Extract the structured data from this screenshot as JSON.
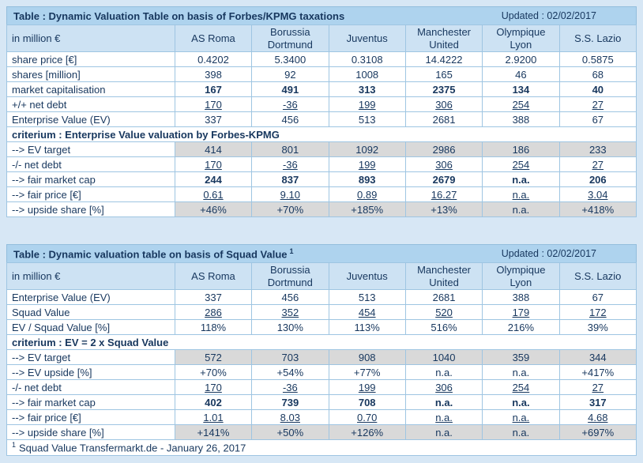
{
  "colors": {
    "page_bg": "#d7e7f5",
    "title_bar_bg": "#aed3ee",
    "header_bg": "#cde2f3",
    "border": "#9ec5e2",
    "text": "#17375e",
    "gray_row_bg": "#d9d9d9",
    "cell_bg": "#ffffff"
  },
  "table1": {
    "title": "Table : Dynamic Valuation Table on basis of Forbes/KPMG taxations",
    "updated": "Updated : 02/02/2017",
    "unit_label": "in million €",
    "columns": [
      "AS Roma",
      "Borussia Dortmund",
      "Juventus",
      "Manchester United",
      "Olympique Lyon",
      "S.S. Lazio"
    ],
    "rows": [
      {
        "label": "share price [€]",
        "style": "plain",
        "values": [
          "0.4202",
          "5.3400",
          "0.3108",
          "14.4222",
          "2.9200",
          "0.5875"
        ]
      },
      {
        "label": "shares [million]",
        "style": "plain",
        "values": [
          "398",
          "92",
          "1008",
          "165",
          "46",
          "68"
        ]
      },
      {
        "label": "market capitalisation",
        "style": "bold",
        "values": [
          "167",
          "491",
          "313",
          "2375",
          "134",
          "40"
        ]
      },
      {
        "label": "+/+ net debt",
        "style": "underline",
        "values": [
          "170",
          "-36",
          "199",
          "306",
          "254",
          "27"
        ]
      },
      {
        "label": "Enterprise Value (EV)",
        "style": "plain",
        "values": [
          "337",
          "456",
          "513",
          "2681",
          "388",
          "67"
        ]
      },
      {
        "type": "section",
        "label": "criterium : Enterprise Value valuation by Forbes-KPMG"
      },
      {
        "label": "--> EV target",
        "style": "gray",
        "values": [
          "414",
          "801",
          "1092",
          "2986",
          "186",
          "233"
        ]
      },
      {
        "label": "-/- net debt",
        "style": "underline",
        "values": [
          "170",
          "-36",
          "199",
          "306",
          "254",
          "27"
        ]
      },
      {
        "label": "--> fair market cap",
        "style": "bold",
        "values": [
          "244",
          "837",
          "893",
          "2679",
          "n.a.",
          "206"
        ]
      },
      {
        "label": "--> fair price [€]",
        "style": "underline",
        "values": [
          "0.61",
          "9.10",
          "0.89",
          "16.27",
          "n.a.",
          "3.04"
        ]
      },
      {
        "label": "--> upside share [%]",
        "style": "gray",
        "values": [
          "+46%",
          "+70%",
          "+185%",
          "+13%",
          "n.a.",
          "+418%"
        ]
      }
    ]
  },
  "table2": {
    "title": "Table : Dynamic valuation table on basis of Squad Value",
    "title_sup": "1",
    "updated": "Updated : 02/02/2017",
    "unit_label": "in million €",
    "columns": [
      "AS Roma",
      "Borussia Dortmund",
      "Juventus",
      "Manchester United",
      "Olympique Lyon",
      "S.S. Lazio"
    ],
    "rows": [
      {
        "label": "Enterprise Value (EV)",
        "style": "plain",
        "values": [
          "337",
          "456",
          "513",
          "2681",
          "388",
          "67"
        ]
      },
      {
        "label": "Squad Value",
        "style": "underline",
        "values": [
          "286",
          "352",
          "454",
          "520",
          "179",
          "172"
        ]
      },
      {
        "label": "EV / Squad Value [%]",
        "style": "plain",
        "values": [
          "118%",
          "130%",
          "113%",
          "516%",
          "216%",
          "39%"
        ]
      },
      {
        "type": "section",
        "label": "criterium : EV = 2 x Squad Value"
      },
      {
        "label": "--> EV target",
        "style": "gray",
        "values": [
          "572",
          "703",
          "908",
          "1040",
          "359",
          "344"
        ]
      },
      {
        "label": "--> EV upside [%]",
        "style": "plain",
        "values": [
          "+70%",
          "+54%",
          "+77%",
          "n.a.",
          "n.a.",
          "+417%"
        ]
      },
      {
        "label": "-/- net debt",
        "style": "underline",
        "values": [
          "170",
          "-36",
          "199",
          "306",
          "254",
          "27"
        ]
      },
      {
        "label": "--> fair market cap",
        "style": "bold",
        "values": [
          "402",
          "739",
          "708",
          "n.a.",
          "n.a.",
          "317"
        ]
      },
      {
        "label": "--> fair price [€]",
        "style": "underline",
        "values": [
          "1.01",
          "8.03",
          "0.70",
          "n.a.",
          "n.a.",
          "4.68"
        ]
      },
      {
        "label": "--> upside share [%]",
        "style": "gray",
        "values": [
          "+141%",
          "+50%",
          "+126%",
          "n.a.",
          "n.a.",
          "+697%"
        ]
      }
    ],
    "footnote": {
      "sup": "1",
      "text": "Squad Value Transfermarkt.de - January 26, 2017"
    }
  }
}
